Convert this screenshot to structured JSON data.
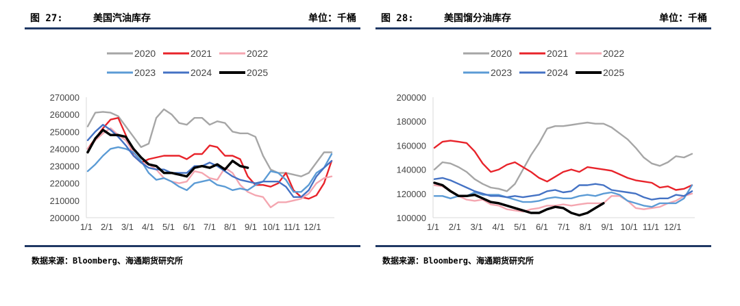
{
  "panels": [
    {
      "figure": "图 27:",
      "title": "美国汽油库存",
      "unit": "单位：千桶",
      "source": "数据来源：Bloomberg、海通期货研究所"
    },
    {
      "figure": "图 28:",
      "title": "美国馏分油库存",
      "unit": "单位：千桶",
      "source": "数据来源：Bloomberg、海通期货研究所"
    }
  ],
  "colors": {
    "2020": "#a6a6a6",
    "2021": "#e8232a",
    "2022": "#f4a6b0",
    "2023": "#5b9bd5",
    "2024": "#4472c4",
    "2025": "#000000"
  },
  "chart_data": [
    {
      "type": "line",
      "title": "美国汽油库存",
      "ylim": [
        200000,
        270000
      ],
      "yticks": [
        "270000",
        "260000",
        "250000",
        "240000",
        "230000",
        "220000",
        "210000",
        "200000"
      ],
      "xticks": [
        "1/1",
        "2/1",
        "3/1",
        "4/1",
        "5/1",
        "6/1",
        "7/1",
        "8/1",
        "9/1",
        "10/1",
        "11/1",
        "12/1"
      ],
      "legend_position": "top",
      "series": [
        {
          "name": "2020",
          "values": [
            253000,
            261000,
            261500,
            261000,
            259000,
            253000,
            247000,
            241000,
            243000,
            258000,
            263000,
            260000,
            255000,
            254000,
            258000,
            258000,
            254000,
            256000,
            255000,
            250000,
            249000,
            249000,
            247000,
            236000,
            228000,
            226000,
            226000,
            225000,
            224000,
            226000,
            232000,
            238000,
            238000
          ]
        },
        {
          "name": "2021",
          "values": [
            240000,
            246000,
            252000,
            257000,
            258000,
            248000,
            236000,
            232000,
            234000,
            235000,
            236000,
            236000,
            236000,
            234000,
            237000,
            237000,
            242000,
            241000,
            236000,
            236000,
            234000,
            224000,
            219000,
            219000,
            218000,
            220000,
            226000,
            216000,
            212000,
            211000,
            213000,
            220000,
            233000
          ]
        },
        {
          "name": "2022",
          "values": [
            240000,
            245000,
            249000,
            252000,
            248000,
            245000,
            238000,
            232000,
            231000,
            228000,
            223000,
            221000,
            220000,
            221000,
            227000,
            226000,
            223000,
            222000,
            229000,
            226000,
            219000,
            215000,
            213000,
            212000,
            206000,
            209000,
            209000,
            210000,
            211000,
            214000,
            220000,
            223000,
            224000
          ]
        },
        {
          "name": "2023",
          "values": [
            227000,
            231000,
            236000,
            240000,
            241000,
            240000,
            238000,
            233000,
            226000,
            222000,
            223000,
            221000,
            218000,
            216000,
            220000,
            221000,
            222000,
            219000,
            218000,
            216000,
            217000,
            216000,
            219000,
            221000,
            227000,
            226000,
            222000,
            215000,
            215000,
            219000,
            226000,
            229000,
            237000
          ]
        },
        {
          "name": "2024",
          "values": [
            245000,
            250000,
            254000,
            251000,
            247000,
            242000,
            236000,
            232000,
            229000,
            228000,
            228000,
            226000,
            226000,
            226000,
            230000,
            230000,
            232000,
            230000,
            227000,
            224000,
            222000,
            221000,
            220000,
            221000,
            221000,
            221000,
            218000,
            212000,
            212000,
            216000,
            224000,
            229000,
            233000
          ]
        },
        {
          "name": "2025",
          "values": [
            238000,
            246000,
            251000,
            248000,
            248000,
            247000,
            240000,
            235000,
            231000,
            230000,
            226000,
            226000,
            225000,
            224000,
            229000,
            230000,
            229000,
            231000,
            228000,
            233000,
            230000,
            229000,
            null,
            null,
            null,
            null,
            null,
            null,
            null,
            null,
            null,
            null,
            null
          ]
        }
      ]
    },
    {
      "type": "line",
      "title": "美国馏分油库存",
      "ylim": [
        100000,
        200000
      ],
      "yticks": [
        "200000",
        "180000",
        "160000",
        "140000",
        "120000",
        "100000"
      ],
      "xticks": [
        "1/1",
        "2/1",
        "3/1",
        "4/1",
        "5/1",
        "6/1",
        "7/1",
        "8/1",
        "9/1",
        "10/1",
        "11/1",
        "12/1"
      ],
      "legend_position": "top",
      "series": [
        {
          "name": "2020",
          "values": [
            140000,
            146000,
            145000,
            142000,
            138000,
            132000,
            128000,
            125000,
            124000,
            122000,
            128000,
            140000,
            152000,
            162000,
            174000,
            176000,
            176000,
            177000,
            178000,
            179000,
            178000,
            178000,
            175000,
            170000,
            165000,
            158000,
            150000,
            145000,
            143000,
            146000,
            151000,
            150000,
            153000
          ]
        },
        {
          "name": "2021",
          "values": [
            158000,
            163000,
            164000,
            163000,
            162000,
            155000,
            145000,
            138000,
            140000,
            144000,
            146000,
            142000,
            138000,
            133000,
            130000,
            134000,
            138000,
            140000,
            138000,
            142000,
            141000,
            140000,
            139000,
            136000,
            133000,
            131000,
            130000,
            129000,
            125000,
            126000,
            123000,
            124000,
            127000
          ]
        },
        {
          "name": "2022",
          "values": [
            127000,
            126000,
            122000,
            118000,
            115000,
            114000,
            115000,
            111000,
            110000,
            107000,
            106000,
            105000,
            107000,
            108000,
            110000,
            110000,
            111000,
            110000,
            111000,
            112000,
            112000,
            112000,
            118000,
            118000,
            114000,
            108000,
            107000,
            108000,
            109000,
            112000,
            114000,
            118000,
            120000
          ]
        },
        {
          "name": "2023",
          "values": [
            118000,
            118000,
            116000,
            118000,
            118000,
            121000,
            119000,
            119000,
            119000,
            117000,
            115000,
            113000,
            113000,
            114000,
            116000,
            117000,
            116000,
            116000,
            118000,
            119000,
            118000,
            120000,
            121000,
            119000,
            114000,
            112000,
            110000,
            109000,
            112000,
            112000,
            112000,
            116000,
            127000
          ]
        },
        {
          "name": "2024",
          "values": [
            132000,
            133000,
            131000,
            128000,
            125000,
            122000,
            120000,
            118000,
            118000,
            117000,
            118000,
            117000,
            118000,
            119000,
            122000,
            123000,
            121000,
            122000,
            127000,
            127000,
            128000,
            127000,
            123000,
            122000,
            121000,
            120000,
            117000,
            115000,
            116000,
            116000,
            119000,
            118000,
            122000
          ]
        },
        {
          "name": "2025",
          "values": [
            129000,
            127000,
            122000,
            118000,
            118000,
            119000,
            116000,
            113000,
            112000,
            110000,
            108000,
            106000,
            104000,
            104000,
            107000,
            109000,
            108000,
            104000,
            102000,
            104000,
            108000,
            112000,
            null,
            null,
            null,
            null,
            null,
            null,
            null,
            null,
            null,
            null,
            null
          ]
        }
      ]
    }
  ]
}
